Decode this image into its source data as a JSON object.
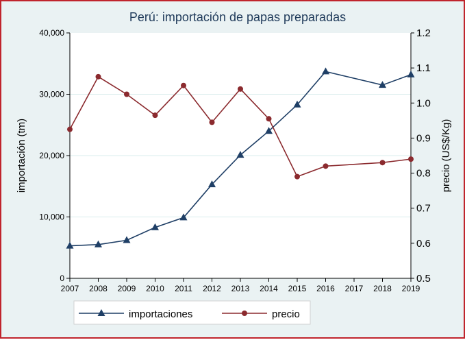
{
  "chart_data": {
    "type": "line",
    "title": "Perú: importación de papas preparadas",
    "ylabel_left": "importación (tm)",
    "ylabel_right": "precio (US$/Kg)",
    "x_ticks": [
      "2007",
      "2008",
      "2009",
      "2010",
      "2011",
      "2012",
      "2013",
      "2014",
      "2015",
      "2016",
      "2017",
      "2018",
      "2019"
    ],
    "ylim_left": [
      0,
      40000
    ],
    "ylim_right": [
      0.5,
      1.2
    ],
    "left_ticks": [
      "0",
      "10,000",
      "20,000",
      "30,000",
      "40,000"
    ],
    "right_ticks": [
      "0.5",
      "0.6",
      "0.7",
      "0.8",
      "0.9",
      "1.0",
      "1.1",
      "1.2"
    ],
    "grid": "horizontal",
    "legend_position": "bottom",
    "series": [
      {
        "name": "importaciones",
        "axis": "left",
        "marker": "triangle",
        "color": "#1f3f66",
        "x": [
          2007,
          2008,
          2009,
          2010,
          2011,
          2012,
          2013,
          2014,
          2015,
          2016,
          2018,
          2019
        ],
        "values": [
          5300,
          5500,
          6200,
          8300,
          9900,
          15300,
          20100,
          24000,
          28300,
          33700,
          31500,
          33200
        ]
      },
      {
        "name": "precio",
        "axis": "right",
        "marker": "circle",
        "color": "#8b2a2e",
        "x": [
          2007,
          2008,
          2009,
          2010,
          2011,
          2012,
          2013,
          2014,
          2015,
          2016,
          2018,
          2019
        ],
        "values": [
          0.925,
          1.075,
          1.025,
          0.965,
          1.05,
          0.945,
          1.04,
          0.955,
          0.79,
          0.82,
          0.83,
          0.84
        ]
      }
    ]
  }
}
